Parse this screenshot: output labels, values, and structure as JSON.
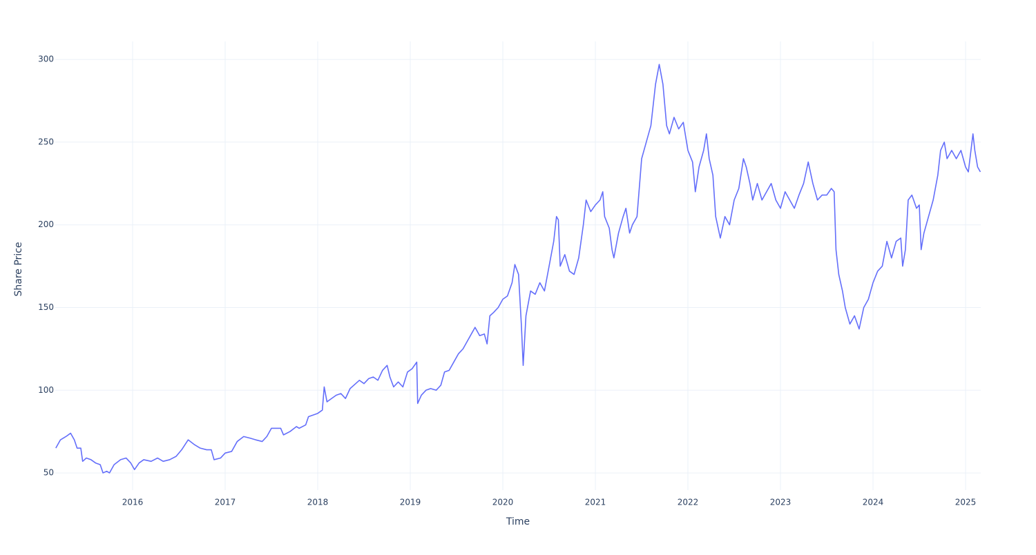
{
  "chart_data": {
    "type": "line",
    "x_label": "Time",
    "y_label": "Share Price",
    "x": [
      2015.17,
      2015.22,
      2015.28,
      2015.33,
      2015.37,
      2015.4,
      2015.44,
      2015.46,
      2015.5,
      2015.55,
      2015.6,
      2015.65,
      2015.68,
      2015.72,
      2015.75,
      2015.8,
      2015.87,
      2015.93,
      2015.98,
      2016.02,
      2016.07,
      2016.12,
      2016.2,
      2016.27,
      2016.33,
      2016.4,
      2016.47,
      2016.53,
      2016.6,
      2016.67,
      2016.73,
      2016.8,
      2016.85,
      2016.88,
      2016.95,
      2017.0,
      2017.07,
      2017.13,
      2017.2,
      2017.27,
      2017.33,
      2017.4,
      2017.45,
      2017.5,
      2017.57,
      2017.6,
      2017.63,
      2017.7,
      2017.77,
      2017.8,
      2017.87,
      2017.9,
      2017.95,
      2018.0,
      2018.05,
      2018.07,
      2018.1,
      2018.15,
      2018.2,
      2018.25,
      2018.3,
      2018.35,
      2018.45,
      2018.5,
      2018.55,
      2018.6,
      2018.65,
      2018.7,
      2018.75,
      2018.78,
      2018.82,
      2018.87,
      2018.92,
      2018.97,
      2019.02,
      2019.07,
      2019.08,
      2019.12,
      2019.17,
      2019.22,
      2019.28,
      2019.33,
      2019.37,
      2019.42,
      2019.47,
      2019.52,
      2019.57,
      2019.62,
      2019.67,
      2019.7,
      2019.75,
      2019.8,
      2019.83,
      2019.86,
      2019.9,
      2019.95,
      2020.0,
      2020.05,
      2020.1,
      2020.13,
      2020.17,
      2020.2,
      2020.22,
      2020.25,
      2020.3,
      2020.35,
      2020.4,
      2020.45,
      2020.5,
      2020.55,
      2020.58,
      2020.6,
      2020.62,
      2020.67,
      2020.72,
      2020.77,
      2020.82,
      2020.87,
      2020.9,
      2020.95,
      2021.0,
      2021.05,
      2021.08,
      2021.1,
      2021.15,
      2021.18,
      2021.2,
      2021.25,
      2021.3,
      2021.33,
      2021.37,
      2021.4,
      2021.45,
      2021.5,
      2021.55,
      2021.6,
      2021.65,
      2021.69,
      2021.73,
      2021.77,
      2021.8,
      2021.85,
      2021.9,
      2021.95,
      2022.0,
      2022.05,
      2022.08,
      2022.12,
      2022.17,
      2022.2,
      2022.23,
      2022.27,
      2022.3,
      2022.35,
      2022.4,
      2022.45,
      2022.5,
      2022.55,
      2022.6,
      2022.63,
      2022.67,
      2022.7,
      2022.75,
      2022.8,
      2022.85,
      2022.9,
      2022.95,
      2023.0,
      2023.05,
      2023.1,
      2023.15,
      2023.2,
      2023.25,
      2023.3,
      2023.35,
      2023.4,
      2023.45,
      2023.5,
      2023.55,
      2023.58,
      2023.6,
      2023.63,
      2023.67,
      2023.7,
      2023.75,
      2023.8,
      2023.85,
      2023.9,
      2023.95,
      2024.0,
      2024.05,
      2024.1,
      2024.15,
      2024.2,
      2024.25,
      2024.3,
      2024.32,
      2024.35,
      2024.38,
      2024.42,
      2024.47,
      2024.5,
      2024.52,
      2024.55,
      2024.6,
      2024.65,
      2024.7,
      2024.73,
      2024.77,
      2024.8,
      2024.85,
      2024.9,
      2024.95,
      2025.0,
      2025.03,
      2025.08,
      2025.1,
      2025.13,
      2025.16
    ],
    "series": [
      {
        "color": "#636efa",
        "values": [
          65,
          70,
          72,
          74,
          70,
          65,
          65,
          57,
          59,
          58,
          56,
          55,
          50,
          51,
          50,
          55,
          58,
          59,
          56,
          52,
          56,
          58,
          57,
          59,
          57,
          58,
          60,
          64,
          70,
          67,
          65,
          64,
          64,
          58,
          59,
          62,
          63,
          69,
          72,
          71,
          70,
          69,
          72,
          77,
          77,
          77,
          73,
          75,
          78,
          77,
          79,
          84,
          85,
          86,
          88,
          102,
          93,
          95,
          97,
          98,
          95,
          101,
          106,
          104,
          107,
          108,
          106,
          112,
          115,
          108,
          102,
          105,
          102,
          111,
          113,
          117,
          92,
          97,
          100,
          101,
          100,
          103,
          111,
          112,
          117,
          122,
          125,
          130,
          135,
          138,
          133,
          134,
          128,
          145,
          147,
          150,
          155,
          157,
          165,
          176,
          170,
          140,
          115,
          145,
          160,
          158,
          165,
          160,
          175,
          190,
          205,
          203,
          175,
          182,
          172,
          170,
          180,
          200,
          215,
          208,
          212,
          215,
          220,
          205,
          198,
          185,
          180,
          195,
          205,
          210,
          195,
          200,
          205,
          240,
          250,
          260,
          285,
          297,
          285,
          260,
          255,
          265,
          258,
          262,
          245,
          238,
          220,
          235,
          245,
          255,
          240,
          230,
          205,
          192,
          205,
          200,
          215,
          222,
          240,
          235,
          225,
          215,
          225,
          215,
          220,
          225,
          215,
          210,
          220,
          215,
          210,
          218,
          225,
          238,
          225,
          215,
          218,
          218,
          222,
          220,
          185,
          170,
          160,
          150,
          140,
          145,
          137,
          150,
          155,
          165,
          172,
          175,
          190,
          180,
          190,
          192,
          175,
          185,
          215,
          218,
          210,
          212,
          185,
          195,
          205,
          215,
          230,
          245,
          250,
          240,
          245,
          240,
          245,
          235,
          232,
          255,
          245,
          235,
          232
        ]
      }
    ],
    "xlim": [
      2015.164,
      2025.164
    ],
    "xticks": [
      2016,
      2017,
      2018,
      2019,
      2020,
      2021,
      2022,
      2023,
      2024,
      2025
    ],
    "ylim": [
      39.6,
      310.9
    ],
    "yticks": [
      50,
      100,
      150,
      200,
      250,
      300
    ],
    "grid": true
  }
}
